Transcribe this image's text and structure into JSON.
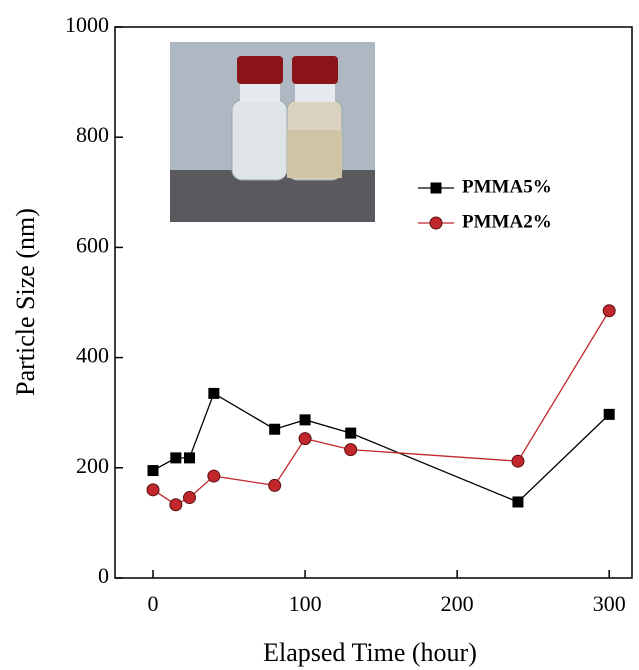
{
  "chart_data": {
    "type": "line",
    "x_label": "Elapsed Time (hour)",
    "y_label": "Particle Size (nm)",
    "xlim": [
      -25,
      315
    ],
    "xticks": [
      0,
      100,
      200,
      300
    ],
    "ylim": [
      0,
      1000
    ],
    "yticks": [
      0,
      200,
      400,
      600,
      800,
      1000
    ],
    "legend_position": "upper right",
    "series": [
      {
        "name": "PMMA5%",
        "color": "#000000",
        "marker": "square",
        "x": [
          0,
          15,
          24,
          40,
          80,
          100,
          130,
          240,
          300
        ],
        "values": [
          195,
          218,
          218,
          335,
          270,
          287,
          263,
          138,
          297
        ]
      },
      {
        "name": "PMMA2%",
        "color": "#c1272d",
        "marker": "circle",
        "x": [
          0,
          15,
          24,
          40,
          80,
          100,
          130,
          240,
          300
        ],
        "values": [
          160,
          133,
          146,
          185,
          168,
          253,
          233,
          212,
          485
        ]
      }
    ]
  }
}
